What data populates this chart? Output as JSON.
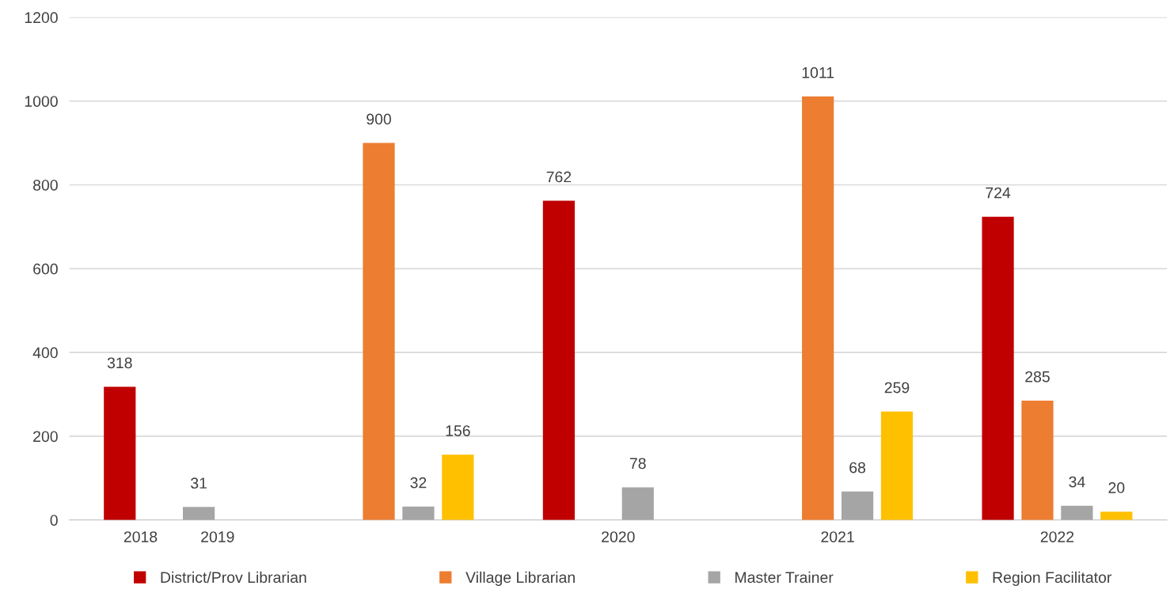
{
  "chart_data": {
    "type": "bar",
    "categories": [
      "2018          2019",
      null,
      "2020",
      "2021",
      "2022"
    ],
    "series": [
      {
        "name": "District/Prov Librarian",
        "color": "#c00000",
        "values": [
          318,
          null,
          762,
          null,
          724
        ]
      },
      {
        "name": "Village Librarian",
        "color": "#ed7d31",
        "values": [
          null,
          900,
          null,
          1011,
          285
        ]
      },
      {
        "name": "Master Trainer",
        "color": "#a5a5a5",
        "values": [
          31,
          32,
          78,
          68,
          34
        ]
      },
      {
        "name": "Region Facilitator",
        "color": "#ffc000",
        "values": [
          null,
          156,
          null,
          259,
          20
        ]
      }
    ],
    "ylim": [
      0,
      1200
    ],
    "yticks": [
      0,
      200,
      400,
      600,
      800,
      1000,
      1200
    ],
    "grid": "y",
    "legend": "bottom",
    "data_labels": true
  }
}
